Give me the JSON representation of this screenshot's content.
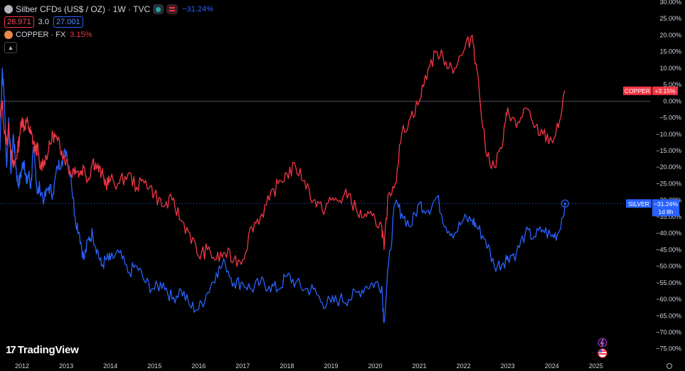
{
  "header": {
    "title": "Silber CFDs (US$ / OZ) · 1W · TVC",
    "change": "−31.24%",
    "bid": "26.971",
    "spread": "3.0",
    "ask": "27.001",
    "copper_name": "COPPER · FX",
    "copper_change": "3.15%",
    "collapse_icon": "chevron-up-icon"
  },
  "branding": {
    "logo_text": "TradingView"
  },
  "colors": {
    "silver": "#2962ff",
    "copper": "#f23645",
    "background": "#000000",
    "text": "#d1d4dc"
  },
  "chart_data": {
    "type": "line",
    "x": [
      2011.5,
      2011.55,
      2011.6,
      2011.65,
      2011.7,
      2011.75,
      2011.8,
      2011.85,
      2011.9,
      2011.95,
      2012.0,
      2012.05,
      2012.1,
      2012.15,
      2012.2,
      2012.25,
      2012.3,
      2012.35,
      2012.4,
      2012.5,
      2012.6,
      2012.7,
      2012.8,
      2012.9,
      2013.0,
      2013.1,
      2013.2,
      2013.3,
      2013.4,
      2013.5,
      2013.6,
      2013.7,
      2013.8,
      2013.9,
      2014.0,
      2014.2,
      2014.4,
      2014.6,
      2014.8,
      2015.0,
      2015.2,
      2015.4,
      2015.6,
      2015.8,
      2016.0,
      2016.2,
      2016.4,
      2016.6,
      2016.8,
      2017.0,
      2017.2,
      2017.4,
      2017.6,
      2017.8,
      2018.0,
      2018.2,
      2018.4,
      2018.6,
      2018.8,
      2019.0,
      2019.2,
      2019.4,
      2019.6,
      2019.8,
      2020.0,
      2020.15,
      2020.2,
      2020.3,
      2020.45,
      2020.6,
      2020.8,
      2021.0,
      2021.2,
      2021.4,
      2021.6,
      2021.8,
      2022.0,
      2022.2,
      2022.3,
      2022.5,
      2022.7,
      2022.9,
      2023.0,
      2023.2,
      2023.4,
      2023.6,
      2023.8,
      2024.0,
      2024.15,
      2024.3
    ],
    "series": [
      {
        "name": "SILVER",
        "values": [
          -15,
          10,
          0,
          -20,
          -5,
          -22,
          -10,
          -18,
          -25,
          -24,
          -20,
          -18,
          -25,
          -22,
          -26,
          -15,
          -20,
          -28,
          -26,
          -30,
          -26,
          -28,
          -20,
          -18,
          -15,
          -22,
          -35,
          -40,
          -48,
          -42,
          -40,
          -45,
          -50,
          -48,
          -48,
          -46,
          -52,
          -50,
          -55,
          -57,
          -55,
          -60,
          -57,
          -62,
          -63,
          -58,
          -52,
          -49,
          -55,
          -55,
          -57,
          -55,
          -56,
          -57,
          -53,
          -55,
          -57,
          -57,
          -61,
          -61,
          -60,
          -60,
          -58,
          -56,
          -55,
          -56,
          -67,
          -50,
          -31,
          -34,
          -38,
          -31,
          -33,
          -29,
          -38,
          -40,
          -36,
          -36,
          -38,
          -42,
          -50,
          -49,
          -47,
          -46,
          -40,
          -41,
          -39,
          -41,
          -40,
          -31
        ]
      },
      {
        "name": "COPPER",
        "values": [
          -5,
          0,
          -10,
          -12,
          -8,
          -15,
          -20,
          -18,
          -15,
          -10,
          -5,
          -8,
          -6,
          -8,
          -10,
          -12,
          -15,
          -14,
          -20,
          -18,
          -15,
          -10,
          -12,
          -15,
          -18,
          -22,
          -20,
          -22,
          -20,
          -24,
          -18,
          -20,
          -22,
          -25,
          -24,
          -25,
          -22,
          -26,
          -24,
          -28,
          -32,
          -30,
          -36,
          -40,
          -47,
          -45,
          -48,
          -46,
          -48,
          -48,
          -38,
          -35,
          -30,
          -25,
          -22,
          -20,
          -24,
          -30,
          -33,
          -30,
          -30,
          -28,
          -34,
          -35,
          -36,
          -38,
          -45,
          -28,
          -25,
          -10,
          -5,
          0,
          10,
          15,
          12,
          10,
          15,
          20,
          10,
          -15,
          -20,
          -12,
          -2,
          -8,
          -2,
          -8,
          -10,
          -12,
          -8,
          3.15
        ]
      }
    ],
    "xlabel": "",
    "ylabel": "",
    "ylim": [
      -77,
      30
    ],
    "xlim": [
      2011.5,
      2025.6
    ],
    "yticks": [
      "30.00%",
      "25.00%",
      "20.00%",
      "15.00%",
      "10.00%",
      "5.00%",
      "0.00%",
      "−5.00%",
      "−10.00%",
      "−15.00%",
      "−20.00%",
      "−25.00%",
      "−30.00%",
      "−35.00%",
      "−40.00%",
      "−45.00%",
      "−50.00%",
      "−55.00%",
      "−60.00%",
      "−65.00%",
      "−70.00%",
      "−75.00%"
    ],
    "xticks": [
      "2012",
      "2013",
      "2014",
      "2015",
      "2016",
      "2017",
      "2018",
      "2019",
      "2020",
      "2021",
      "2022",
      "2023",
      "2024",
      "2025"
    ],
    "labels": {
      "copper_tag": "COPPER",
      "copper_value": "+3.15%",
      "silver_tag": "SILVER",
      "silver_value": "−31.24%",
      "silver_countdown": "1d 8h"
    },
    "grid": false,
    "legend": "top-left"
  }
}
